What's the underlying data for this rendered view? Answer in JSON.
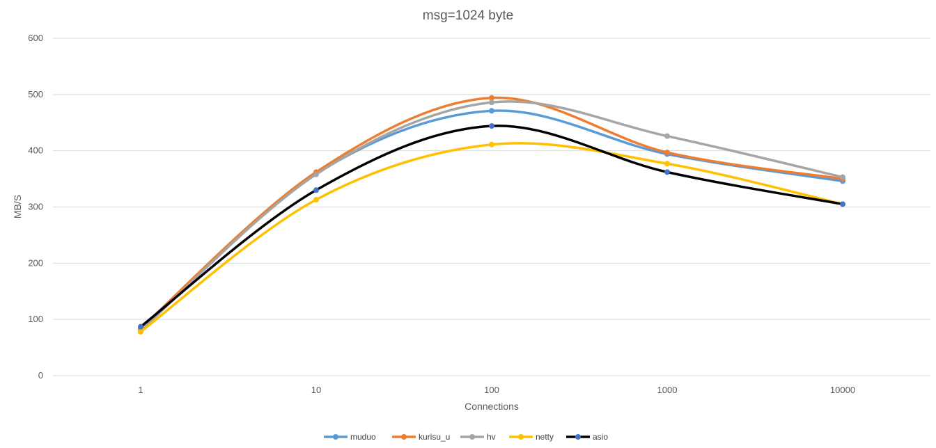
{
  "chart_data": {
    "type": "line",
    "title": "msg=1024 byte",
    "xlabel": "Connections",
    "ylabel": "MB/S",
    "categories": [
      "1",
      "10",
      "100",
      "1000",
      "10000"
    ],
    "ylim": [
      0,
      600
    ],
    "yticks": [
      "0",
      "100",
      "200",
      "300",
      "400",
      "500",
      "600"
    ],
    "grid": true,
    "legend_position": "bottom",
    "smooth": true,
    "series": [
      {
        "name": "muduo",
        "color": "#5b9bd5",
        "values": [
          82,
          359,
          471,
          394,
          346
        ]
      },
      {
        "name": "kurisu_u",
        "color": "#ed7d31",
        "values": [
          84,
          362,
          494,
          397,
          350
        ]
      },
      {
        "name": "hv",
        "color": "#a5a5a5",
        "values": [
          80,
          358,
          486,
          426,
          353
        ]
      },
      {
        "name": "netty",
        "color": "#ffc000",
        "values": [
          78,
          313,
          411,
          377,
          305
        ]
      },
      {
        "name": "asio",
        "color": "#000000",
        "marker_color": "#4472c4",
        "values": [
          87,
          330,
          444,
          362,
          305
        ]
      }
    ]
  }
}
